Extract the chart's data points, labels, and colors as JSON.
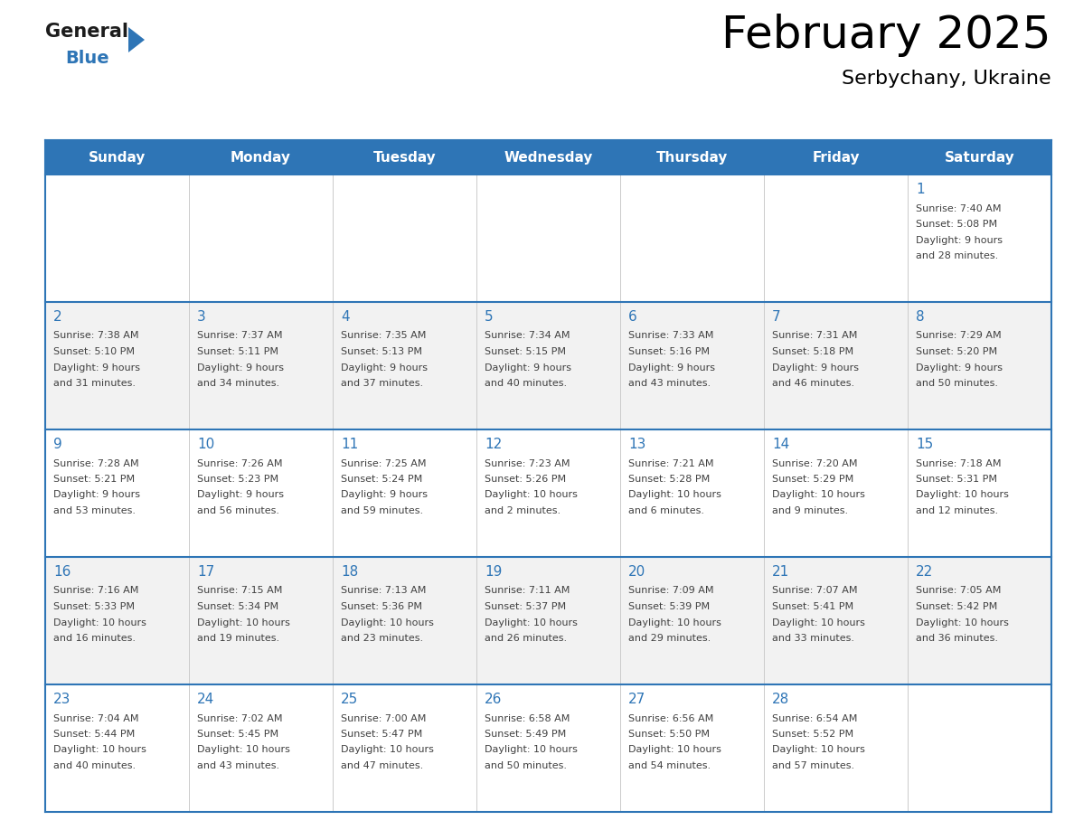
{
  "title": "February 2025",
  "subtitle": "Serbychany, Ukraine",
  "header_color": "#2E75B6",
  "header_text_color": "#FFFFFF",
  "cell_bg_even": "#FFFFFF",
  "cell_bg_odd": "#F2F2F2",
  "day_number_color": "#2E75B6",
  "text_color": "#404040",
  "border_color": "#2E75B6",
  "grid_color": "#CCCCCC",
  "days_of_week": [
    "Sunday",
    "Monday",
    "Tuesday",
    "Wednesday",
    "Thursday",
    "Friday",
    "Saturday"
  ],
  "title_fontsize": 36,
  "subtitle_fontsize": 16,
  "header_fontsize": 11,
  "day_num_fontsize": 11,
  "cell_text_fontsize": 8,
  "calendar_data": [
    [
      null,
      null,
      null,
      null,
      null,
      null,
      {
        "day": 1,
        "sunrise": "7:40 AM",
        "sunset": "5:08 PM",
        "daylight_hours": 9,
        "daylight_minutes": 28
      }
    ],
    [
      {
        "day": 2,
        "sunrise": "7:38 AM",
        "sunset": "5:10 PM",
        "daylight_hours": 9,
        "daylight_minutes": 31
      },
      {
        "day": 3,
        "sunrise": "7:37 AM",
        "sunset": "5:11 PM",
        "daylight_hours": 9,
        "daylight_minutes": 34
      },
      {
        "day": 4,
        "sunrise": "7:35 AM",
        "sunset": "5:13 PM",
        "daylight_hours": 9,
        "daylight_minutes": 37
      },
      {
        "day": 5,
        "sunrise": "7:34 AM",
        "sunset": "5:15 PM",
        "daylight_hours": 9,
        "daylight_minutes": 40
      },
      {
        "day": 6,
        "sunrise": "7:33 AM",
        "sunset": "5:16 PM",
        "daylight_hours": 9,
        "daylight_minutes": 43
      },
      {
        "day": 7,
        "sunrise": "7:31 AM",
        "sunset": "5:18 PM",
        "daylight_hours": 9,
        "daylight_minutes": 46
      },
      {
        "day": 8,
        "sunrise": "7:29 AM",
        "sunset": "5:20 PM",
        "daylight_hours": 9,
        "daylight_minutes": 50
      }
    ],
    [
      {
        "day": 9,
        "sunrise": "7:28 AM",
        "sunset": "5:21 PM",
        "daylight_hours": 9,
        "daylight_minutes": 53
      },
      {
        "day": 10,
        "sunrise": "7:26 AM",
        "sunset": "5:23 PM",
        "daylight_hours": 9,
        "daylight_minutes": 56
      },
      {
        "day": 11,
        "sunrise": "7:25 AM",
        "sunset": "5:24 PM",
        "daylight_hours": 9,
        "daylight_minutes": 59
      },
      {
        "day": 12,
        "sunrise": "7:23 AM",
        "sunset": "5:26 PM",
        "daylight_hours": 10,
        "daylight_minutes": 2
      },
      {
        "day": 13,
        "sunrise": "7:21 AM",
        "sunset": "5:28 PM",
        "daylight_hours": 10,
        "daylight_minutes": 6
      },
      {
        "day": 14,
        "sunrise": "7:20 AM",
        "sunset": "5:29 PM",
        "daylight_hours": 10,
        "daylight_minutes": 9
      },
      {
        "day": 15,
        "sunrise": "7:18 AM",
        "sunset": "5:31 PM",
        "daylight_hours": 10,
        "daylight_minutes": 12
      }
    ],
    [
      {
        "day": 16,
        "sunrise": "7:16 AM",
        "sunset": "5:33 PM",
        "daylight_hours": 10,
        "daylight_minutes": 16
      },
      {
        "day": 17,
        "sunrise": "7:15 AM",
        "sunset": "5:34 PM",
        "daylight_hours": 10,
        "daylight_minutes": 19
      },
      {
        "day": 18,
        "sunrise": "7:13 AM",
        "sunset": "5:36 PM",
        "daylight_hours": 10,
        "daylight_minutes": 23
      },
      {
        "day": 19,
        "sunrise": "7:11 AM",
        "sunset": "5:37 PM",
        "daylight_hours": 10,
        "daylight_minutes": 26
      },
      {
        "day": 20,
        "sunrise": "7:09 AM",
        "sunset": "5:39 PM",
        "daylight_hours": 10,
        "daylight_minutes": 29
      },
      {
        "day": 21,
        "sunrise": "7:07 AM",
        "sunset": "5:41 PM",
        "daylight_hours": 10,
        "daylight_minutes": 33
      },
      {
        "day": 22,
        "sunrise": "7:05 AM",
        "sunset": "5:42 PM",
        "daylight_hours": 10,
        "daylight_minutes": 36
      }
    ],
    [
      {
        "day": 23,
        "sunrise": "7:04 AM",
        "sunset": "5:44 PM",
        "daylight_hours": 10,
        "daylight_minutes": 40
      },
      {
        "day": 24,
        "sunrise": "7:02 AM",
        "sunset": "5:45 PM",
        "daylight_hours": 10,
        "daylight_minutes": 43
      },
      {
        "day": 25,
        "sunrise": "7:00 AM",
        "sunset": "5:47 PM",
        "daylight_hours": 10,
        "daylight_minutes": 47
      },
      {
        "day": 26,
        "sunrise": "6:58 AM",
        "sunset": "5:49 PM",
        "daylight_hours": 10,
        "daylight_minutes": 50
      },
      {
        "day": 27,
        "sunrise": "6:56 AM",
        "sunset": "5:50 PM",
        "daylight_hours": 10,
        "daylight_minutes": 54
      },
      {
        "day": 28,
        "sunrise": "6:54 AM",
        "sunset": "5:52 PM",
        "daylight_hours": 10,
        "daylight_minutes": 57
      },
      null
    ]
  ]
}
